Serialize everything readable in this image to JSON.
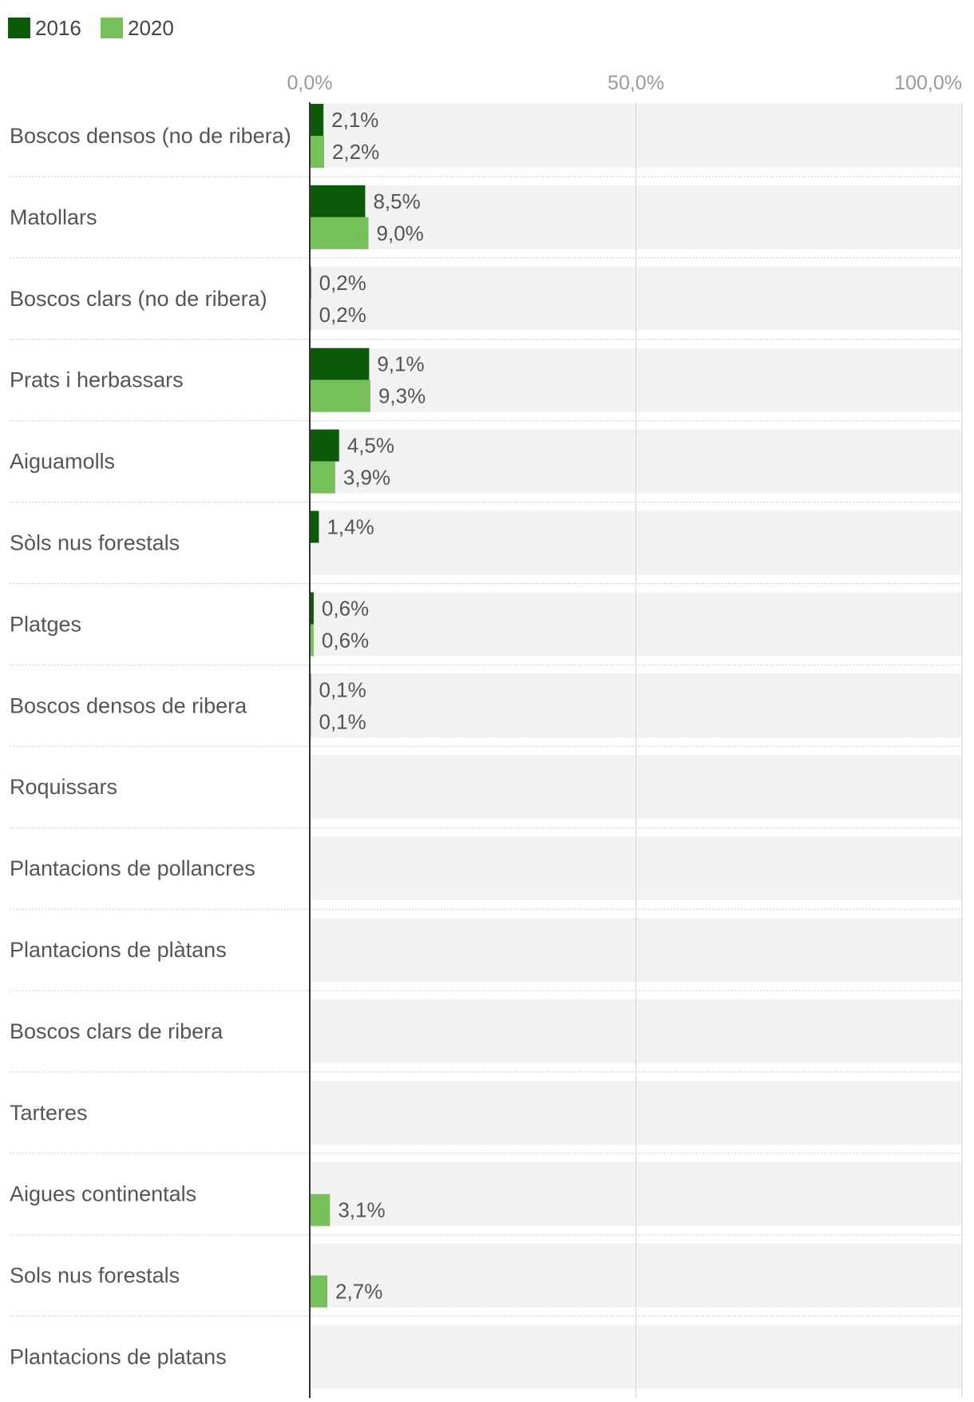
{
  "chart_data": {
    "type": "bar",
    "orientation": "horizontal",
    "title": "",
    "xlabel": "",
    "ylabel": "",
    "xlim": [
      0,
      100
    ],
    "grid": true,
    "legend_position": "top-left",
    "x_ticks": [
      "0,0%",
      "50,0%",
      "100,0%"
    ],
    "x_tick_values": [
      0,
      50,
      100
    ],
    "categories": [
      "Boscos densos (no de ribera)",
      "Matollars",
      "Boscos clars (no de ribera)",
      "Prats i herbassars",
      "Aiguamolls",
      "Sòls nus forestals",
      "Platges",
      "Boscos densos de ribera",
      "Roquissars",
      "Plantacions de pollancres",
      "Plantacions de plàtans",
      "Boscos clars de ribera",
      "Tarteres",
      "Aigues continentals",
      "Sols nus forestals",
      "Plantacions de platans"
    ],
    "series": [
      {
        "name": "2016",
        "color": "#0a5a0a",
        "values": [
          2.1,
          8.5,
          0.2,
          9.1,
          4.5,
          1.4,
          0.6,
          0.1,
          null,
          null,
          null,
          null,
          null,
          null,
          null,
          null
        ],
        "labels": [
          "2,1%",
          "8,5%",
          "0,2%",
          "9,1%",
          "4,5%",
          "1,4%",
          "0,6%",
          "0,1%",
          "",
          "",
          "",
          "",
          "",
          "",
          "",
          ""
        ]
      },
      {
        "name": "2020",
        "color": "#76c15a",
        "values": [
          2.2,
          9.0,
          0.2,
          9.3,
          3.9,
          null,
          0.6,
          0.1,
          null,
          null,
          null,
          null,
          null,
          3.1,
          2.7,
          null
        ],
        "labels": [
          "2,2%",
          "9,0%",
          "0,2%",
          "9,3%",
          "3,9%",
          "",
          "0,6%",
          "0,1%",
          "",
          "",
          "",
          "",
          "",
          "3,1%",
          "2,7%",
          ""
        ]
      }
    ]
  },
  "colors": {
    "row_background": "#f2f2f2",
    "gridline": "#d9d9d9",
    "axis": "#333333",
    "tick_text": "#9a9a9a",
    "label_text": "#555555",
    "separator": "#c8c8c8"
  }
}
